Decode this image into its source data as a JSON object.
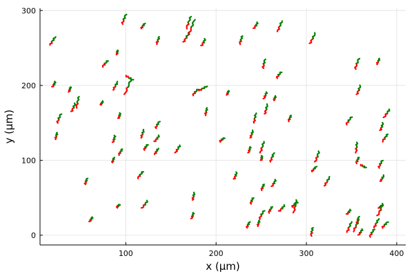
{
  "chart_data": {
    "type": "line",
    "title": "",
    "xlabel": "x (μm)",
    "ylabel": "y (μm)",
    "xlim": [
      5,
      410
    ],
    "ylim": [
      -13,
      303
    ],
    "xticks": [
      100,
      200,
      300,
      400
    ],
    "yticks": [
      0,
      100,
      200,
      300
    ],
    "grid": true,
    "legend": "none",
    "colors": {
      "early": "#ff0000",
      "late": "#008000"
    },
    "tracks": [
      [
        [
          16,
          254
        ],
        [
          22,
          265
        ]
      ],
      [
        [
          19,
          198
        ],
        [
          22,
          205
        ]
      ],
      [
        [
          22,
          128
        ],
        [
          24,
          137
        ]
      ],
      [
        [
          24,
          150
        ],
        [
          28,
          162
        ]
      ],
      [
        [
          37,
          191
        ],
        [
          39,
          198
        ]
      ],
      [
        [
          40,
          165
        ],
        [
          44,
          176
        ]
      ],
      [
        [
          45,
          170
        ],
        [
          48,
          185
        ]
      ],
      [
        [
          55,
          68
        ],
        [
          57,
          76
        ]
      ],
      [
        [
          60,
          18
        ],
        [
          63,
          24
        ]
      ],
      [
        [
          72,
          174
        ],
        [
          75,
          179
        ]
      ],
      [
        [
          74,
          225
        ],
        [
          80,
          233
        ]
      ],
      [
        [
          85,
          97
        ],
        [
          87,
          104
        ]
      ],
      [
        [
          86,
          124
        ],
        [
          88,
          133
        ]
      ],
      [
        [
          86,
          194
        ],
        [
          91,
          205
        ]
      ],
      [
        [
          90,
          37
        ],
        [
          93,
          41
        ]
      ],
      [
        [
          90,
          241
        ],
        [
          91,
          247
        ]
      ],
      [
        [
          92,
          156
        ],
        [
          94,
          163
        ]
      ],
      [
        [
          92,
          107
        ],
        [
          96,
          115
        ]
      ],
      [
        [
          96,
          282
        ],
        [
          100,
          295
        ]
      ],
      [
        [
          99,
          188
        ],
        [
          106,
          209
        ]
      ],
      [
        [
          100,
          213
        ],
        [
          108,
          207
        ]
      ],
      [
        [
          113,
          76
        ],
        [
          119,
          85
        ]
      ],
      [
        [
          117,
          276
        ],
        [
          121,
          283
        ]
      ],
      [
        [
          118,
          36
        ],
        [
          124,
          46
        ]
      ],
      [
        [
          117,
          130
        ],
        [
          120,
          141
        ]
      ],
      [
        [
          120,
          114
        ],
        [
          124,
          121
        ]
      ],
      [
        [
          132,
          108
        ],
        [
          136,
          116
        ]
      ],
      [
        [
          132,
          125
        ],
        [
          137,
          133
        ]
      ],
      [
        [
          134,
          255
        ],
        [
          137,
          265
        ]
      ],
      [
        [
          133,
          143
        ],
        [
          137,
          152
        ]
      ],
      [
        [
          155,
          110
        ],
        [
          160,
          120
        ]
      ],
      [
        [
          164,
          258
        ],
        [
          170,
          270
        ]
      ],
      [
        [
          167,
          276
        ],
        [
          172,
          292
        ]
      ],
      [
        [
          170,
          268
        ],
        [
          176,
          288
        ]
      ],
      [
        [
          173,
          22
        ],
        [
          175,
          30
        ]
      ],
      [
        [
          174,
          47
        ],
        [
          176,
          57
        ]
      ],
      [
        [
          174,
          187
        ],
        [
          180,
          195
        ]
      ],
      [
        [
          181,
          193
        ],
        [
          190,
          199
        ]
      ],
      [
        [
          184,
          253
        ],
        [
          188,
          262
        ]
      ],
      [
        [
          188,
          160
        ],
        [
          190,
          170
        ]
      ],
      [
        [
          204,
          125
        ],
        [
          209,
          130
        ]
      ],
      [
        [
          212,
          187
        ],
        [
          214,
          193
        ]
      ],
      [
        [
          220,
          75
        ],
        [
          223,
          84
        ]
      ],
      [
        [
          226,
          255
        ],
        [
          229,
          266
        ]
      ],
      [
        [
          234,
          10
        ],
        [
          237,
          18
        ]
      ],
      [
        [
          236,
          110
        ],
        [
          238,
          118
        ]
      ],
      [
        [
          238,
          130
        ],
        [
          241,
          140
        ]
      ],
      [
        [
          238,
          42
        ],
        [
          241,
          50
        ]
      ],
      [
        [
          242,
          150
        ],
        [
          244,
          163
        ]
      ],
      [
        [
          242,
          276
        ],
        [
          246,
          284
        ]
      ],
      [
        [
          246,
          12
        ],
        [
          248,
          20
        ]
      ],
      [
        [
          248,
          22
        ],
        [
          253,
          33
        ]
      ],
      [
        [
          249,
          110
        ],
        [
          253,
          125
        ]
      ],
      [
        [
          250,
          100
        ],
        [
          251,
          106
        ]
      ],
      [
        [
          250,
          60
        ],
        [
          253,
          68
        ]
      ],
      [
        [
          252,
          223
        ],
        [
          254,
          235
        ]
      ],
      [
        [
          253,
          182
        ],
        [
          256,
          191
        ]
      ],
      [
        [
          254,
          162
        ],
        [
          257,
          175
        ]
      ],
      [
        [
          258,
          30
        ],
        [
          262,
          38
        ]
      ],
      [
        [
          260,
          98
        ],
        [
          264,
          110
        ]
      ],
      [
        [
          262,
          65
        ],
        [
          266,
          74
        ]
      ],
      [
        [
          264,
          180
        ],
        [
          266,
          186
        ]
      ],
      [
        [
          267,
          210
        ],
        [
          272,
          218
        ]
      ],
      [
        [
          268,
          272
        ],
        [
          273,
          286
        ]
      ],
      [
        [
          270,
          32
        ],
        [
          276,
          40
        ]
      ],
      [
        [
          280,
          152
        ],
        [
          283,
          160
        ]
      ],
      [
        [
          284,
          38
        ],
        [
          290,
          44
        ]
      ],
      [
        [
          286,
          30
        ],
        [
          289,
          47
        ]
      ],
      [
        [
          304,
          256
        ],
        [
          310,
          270
        ]
      ],
      [
        [
          305,
          -1
        ],
        [
          307,
          10
        ]
      ],
      [
        [
          306,
          85
        ],
        [
          311,
          92
        ]
      ],
      [
        [
          310,
          98
        ],
        [
          314,
          112
        ]
      ],
      [
        [
          320,
          66
        ],
        [
          326,
          78
        ]
      ],
      [
        [
          344,
          148
        ],
        [
          350,
          158
        ]
      ],
      [
        [
          345,
          4
        ],
        [
          350,
          18
        ]
      ],
      [
        [
          345,
          28
        ],
        [
          349,
          34
        ]
      ],
      [
        [
          352,
          5
        ],
        [
          358,
          20
        ]
      ],
      [
        [
          354,
          222
        ],
        [
          358,
          236
        ]
      ],
      [
        [
          355,
          110
        ],
        [
          356,
          124
        ]
      ],
      [
        [
          356,
          188
        ],
        [
          360,
          200
        ]
      ],
      [
        [
          355,
          96
        ],
        [
          358,
          104
        ]
      ],
      [
        [
          356,
          16
        ],
        [
          358,
          25
        ]
      ],
      [
        [
          358,
          0
        ],
        [
          362,
          8
        ]
      ],
      [
        [
          360,
          94
        ],
        [
          366,
          90
        ]
      ],
      [
        [
          370,
          -2
        ],
        [
          375,
          8
        ]
      ],
      [
        [
          375,
          10
        ],
        [
          380,
          22
        ]
      ],
      [
        [
          379,
          26
        ],
        [
          385,
          42
        ]
      ],
      [
        [
          378,
          228
        ],
        [
          381,
          236
        ]
      ],
      [
        [
          380,
          90
        ],
        [
          384,
          100
        ]
      ],
      [
        [
          380,
          36
        ],
        [
          384,
          40
        ]
      ],
      [
        [
          382,
          140
        ],
        [
          385,
          150
        ]
      ],
      [
        [
          384,
          125
        ],
        [
          390,
          135
        ]
      ],
      [
        [
          384,
          10
        ],
        [
          390,
          18
        ]
      ],
      [
        [
          386,
          157
        ],
        [
          392,
          168
        ]
      ],
      [
        [
          382,
          72
        ],
        [
          386,
          80
        ]
      ]
    ]
  }
}
